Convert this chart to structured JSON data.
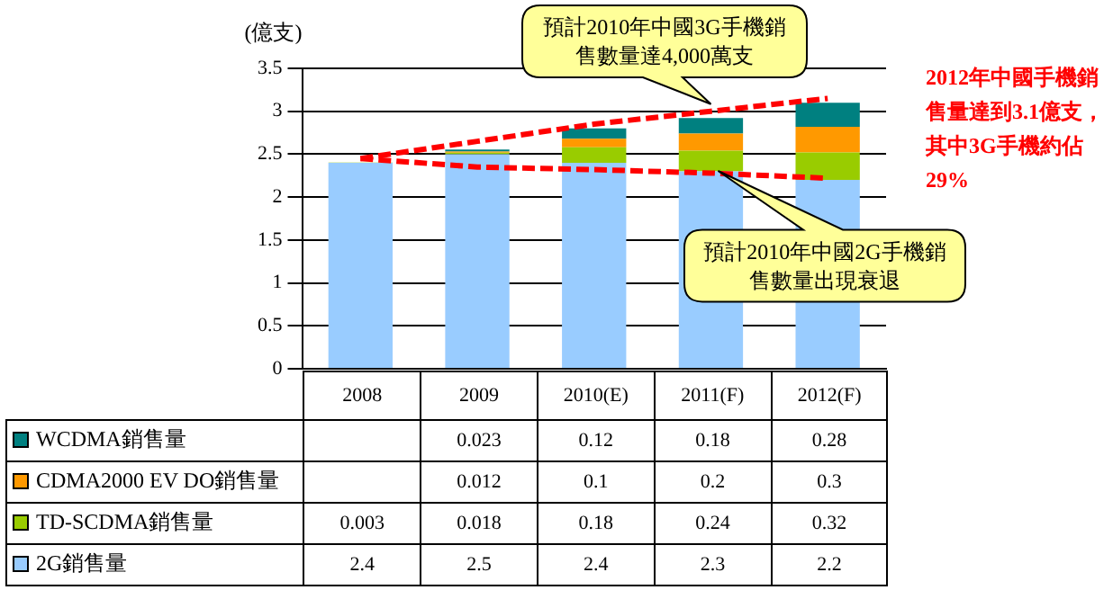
{
  "chart_data": {
    "type": "bar",
    "stacked": true,
    "ylabel": "(億支)",
    "categories": [
      "2008",
      "2009",
      "2010(E)",
      "2011(F)",
      "2012(F)"
    ],
    "series": [
      {
        "name": "2G銷售量",
        "color": "#99ccff",
        "values": [
          2.4,
          2.5,
          2.4,
          2.3,
          2.2
        ]
      },
      {
        "name": "TD-SCDMA銷售量",
        "color": "#99cc00",
        "values": [
          0.003,
          0.018,
          0.18,
          0.24,
          0.32
        ]
      },
      {
        "name": "CDMA2000 EV DO銷售量",
        "color": "#ff9900",
        "values": [
          null,
          0.012,
          0.1,
          0.2,
          0.3
        ]
      },
      {
        "name": "WCDMA銷售量",
        "color": "#008080",
        "values": [
          null,
          0.023,
          0.12,
          0.18,
          0.28
        ]
      },
      {
        "type": "line",
        "line_style": "dashed",
        "color": "#ff0000",
        "values": [
          2.45,
          2.65,
          2.85,
          3.0,
          3.15
        ],
        "value_labels": [
          null,
          null,
          null,
          null,
          null
        ]
      },
      {
        "type": "line",
        "line_style": "dashed",
        "color": "#ff0000",
        "values": [
          2.45,
          2.35,
          2.32,
          2.28,
          2.22
        ],
        "value_labels": [
          null,
          null,
          null,
          null,
          null
        ]
      }
    ],
    "ylim": [
      0,
      3.5
    ],
    "yticks": [
      0,
      0.5,
      1,
      1.5,
      2,
      2.5,
      3,
      3.5
    ],
    "grid": "y",
    "legend": "bottom",
    "data_labels": true,
    "annotations": [
      "預計2010年中國3G手機銷售數量達4,000萬支",
      "預計2010年中國2G手機銷售數量出現衰退",
      "2012年中國手機銷售量達到3.1億支，其中3G手機約佔29%"
    ]
  }
}
